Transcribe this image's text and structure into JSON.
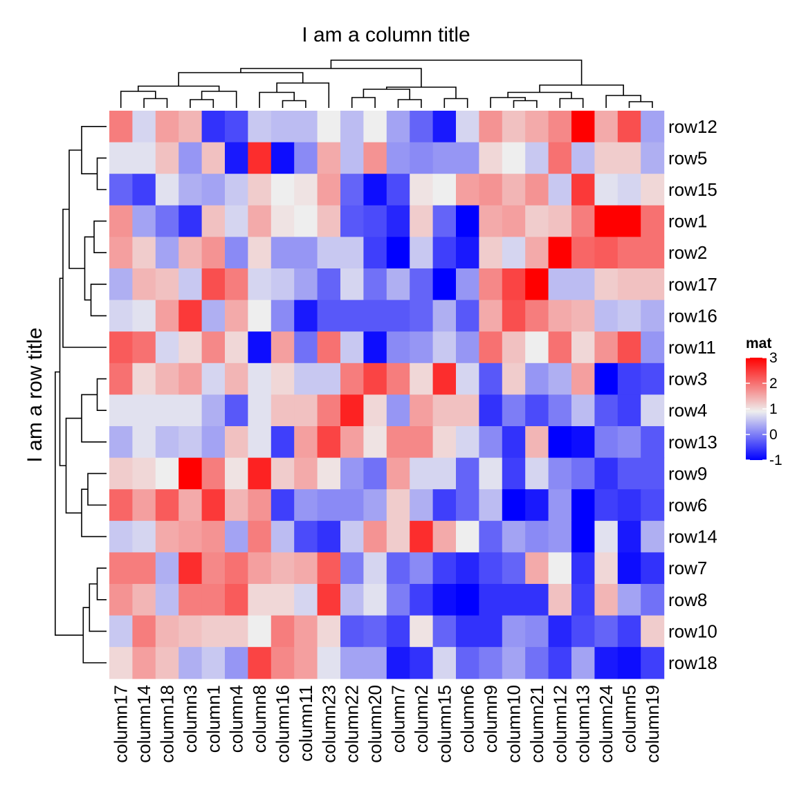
{
  "chart_data": {
    "type": "heatmap",
    "title": "I am a column title",
    "row_title": "I am a row title",
    "columns": [
      "column17",
      "column14",
      "column18",
      "column3",
      "column1",
      "column4",
      "column8",
      "column16",
      "column11",
      "column23",
      "column22",
      "column20",
      "column7",
      "column2",
      "column15",
      "column6",
      "column9",
      "column10",
      "column21",
      "column12",
      "column13",
      "column24",
      "column5",
      "column19"
    ],
    "rows": [
      "row12",
      "row5",
      "row15",
      "row1",
      "row2",
      "row17",
      "row16",
      "row11",
      "row3",
      "row4",
      "row13",
      "row9",
      "row6",
      "row14",
      "row7",
      "row8",
      "row10",
      "row18"
    ],
    "values": [
      [
        1.9,
        0.7,
        1.6,
        1.4,
        -0.6,
        -0.4,
        0.6,
        0.5,
        0.5,
        0.9,
        0.5,
        0.9,
        0.3,
        -0.2,
        -0.8,
        0.7,
        1.7,
        1.3,
        1.5,
        1.8,
        3.0,
        1.5,
        2.3,
        0.3
      ],
      [
        0.8,
        0.8,
        1.3,
        0.2,
        1.3,
        -0.8,
        2.6,
        -0.9,
        0.1,
        1.5,
        0.5,
        1.7,
        0.2,
        0.1,
        0.2,
        0.2,
        1.1,
        0.9,
        0.6,
        2.0,
        0.5,
        1.2,
        1.2,
        0.4
      ],
      [
        -0.2,
        -0.5,
        0.8,
        0.4,
        0.3,
        0.6,
        1.2,
        0.9,
        1.0,
        1.6,
        -0.2,
        -0.9,
        -0.4,
        1.0,
        0.9,
        1.6,
        1.7,
        1.4,
        1.7,
        0.6,
        2.5,
        0.8,
        0.7,
        1.1
      ],
      [
        1.7,
        0.3,
        -0.1,
        -0.6,
        1.3,
        0.7,
        1.5,
        1.0,
        0.9,
        1.3,
        -0.3,
        -0.4,
        -0.7,
        1.2,
        -0.2,
        -1.0,
        1.5,
        1.6,
        1.2,
        1.3,
        1.9,
        3.0,
        3.0,
        2.0
      ],
      [
        1.6,
        1.2,
        0.3,
        1.4,
        1.7,
        0.1,
        1.1,
        0.2,
        0.2,
        0.6,
        0.6,
        -0.5,
        -1.0,
        0.6,
        -0.5,
        -0.8,
        1.2,
        0.7,
        1.5,
        3.0,
        2.1,
        2.2,
        2.0,
        2.0
      ],
      [
        0.4,
        1.4,
        1.3,
        0.6,
        2.3,
        1.9,
        0.7,
        0.6,
        0.3,
        -0.2,
        0.7,
        -0.1,
        0.4,
        -0.2,
        -1.0,
        0.2,
        1.8,
        2.4,
        3.0,
        0.5,
        0.5,
        1.2,
        1.3,
        1.3
      ],
      [
        0.7,
        0.8,
        1.6,
        2.5,
        0.4,
        1.5,
        0.9,
        0.1,
        -0.8,
        -0.3,
        -0.3,
        -0.3,
        -0.3,
        -0.2,
        0.4,
        -0.3,
        1.5,
        2.3,
        1.9,
        1.5,
        1.4,
        0.5,
        0.6,
        0.4
      ],
      [
        2.2,
        2.0,
        0.7,
        1.1,
        1.8,
        1.1,
        -0.9,
        1.6,
        -0.1,
        2.0,
        0.6,
        -0.9,
        0.1,
        0.2,
        0.6,
        0.2,
        2.0,
        1.3,
        0.9,
        2.0,
        1.1,
        1.7,
        2.3,
        0.2
      ],
      [
        2.0,
        1.1,
        1.4,
        1.6,
        0.7,
        1.4,
        0.8,
        1.1,
        0.6,
        0.6,
        1.9,
        2.4,
        1.9,
        1.1,
        2.6,
        0.7,
        -0.3,
        1.2,
        0.2,
        0.4,
        1.6,
        -1.0,
        -0.5,
        -0.4
      ],
      [
        0.8,
        0.8,
        0.8,
        0.8,
        0.4,
        -0.3,
        0.8,
        1.3,
        1.3,
        1.9,
        2.7,
        1.1,
        0.2,
        1.6,
        1.3,
        1.3,
        -0.6,
        0.0,
        -0.4,
        0.0,
        0.5,
        -0.3,
        -0.5,
        0.7
      ],
      [
        0.4,
        0.8,
        0.5,
        0.6,
        0.3,
        1.3,
        0.8,
        -0.5,
        1.6,
        2.4,
        1.6,
        1.0,
        1.8,
        1.8,
        1.1,
        0.7,
        0.1,
        -0.6,
        1.4,
        -1.0,
        -0.9,
        0.0,
        0.1,
        -0.3
      ],
      [
        1.2,
        1.1,
        0.9,
        3.0,
        1.9,
        1.0,
        2.7,
        1.2,
        1.5,
        1.0,
        0.2,
        -0.1,
        1.6,
        0.7,
        0.7,
        -0.2,
        0.8,
        -0.5,
        0.7,
        0.1,
        -0.1,
        -0.6,
        -0.3,
        -0.3
      ],
      [
        2.1,
        1.6,
        2.2,
        1.5,
        2.5,
        1.4,
        1.7,
        -0.5,
        0.2,
        0.1,
        0.1,
        0.3,
        1.2,
        0.4,
        -0.5,
        -0.2,
        0.5,
        -1.0,
        -0.8,
        0.2,
        -1.0,
        -0.5,
        -0.6,
        -0.4
      ],
      [
        0.6,
        0.7,
        1.5,
        1.6,
        1.7,
        0.3,
        1.9,
        0.5,
        -0.4,
        -0.6,
        0.6,
        1.7,
        1.2,
        2.6,
        1.5,
        0.9,
        -0.2,
        0.3,
        0.1,
        0.2,
        -1.0,
        0.8,
        -0.8,
        0.4
      ],
      [
        1.9,
        1.9,
        0.4,
        2.6,
        1.8,
        2.0,
        1.6,
        1.4,
        1.5,
        2.2,
        0.0,
        0.7,
        -0.2,
        0.1,
        -0.5,
        -0.7,
        -0.4,
        -0.2,
        1.5,
        0.9,
        -0.6,
        1.1,
        -0.9,
        -0.6
      ],
      [
        1.7,
        1.4,
        0.5,
        1.9,
        1.9,
        2.2,
        1.1,
        1.1,
        0.7,
        2.5,
        0.5,
        0.8,
        0.0,
        -0.5,
        -0.9,
        -1.0,
        -0.6,
        -0.6,
        -0.6,
        1.3,
        -0.5,
        1.4,
        0.3,
        -0.1
      ],
      [
        0.6,
        1.9,
        1.4,
        1.3,
        1.2,
        1.2,
        0.9,
        1.9,
        1.6,
        1.1,
        -0.3,
        -0.2,
        -0.5,
        1.0,
        -0.2,
        -0.6,
        -0.6,
        0.2,
        0.1,
        -0.7,
        -0.4,
        -0.2,
        -0.5,
        1.2
      ],
      [
        1.1,
        1.6,
        1.3,
        0.4,
        0.6,
        0.2,
        2.4,
        1.8,
        1.6,
        0.8,
        0.3,
        0.3,
        -0.8,
        -0.6,
        0.7,
        -0.2,
        0.0,
        0.3,
        -0.1,
        -0.5,
        0.3,
        -0.8,
        -0.9,
        -0.5
      ]
    ],
    "legend": {
      "title": "mat",
      "ticks": [
        "3",
        "2",
        "1",
        "0",
        "-1"
      ],
      "tick_values": [
        3,
        2,
        1,
        0,
        -1
      ],
      "color_stops": [
        {
          "value": -1,
          "color": "#0000ff"
        },
        {
          "value": 0.9,
          "color": "#eeeeee"
        },
        {
          "value": 3,
          "color": "#ff0000"
        }
      ],
      "placement": "right"
    },
    "row_dendrogram": "left",
    "column_dendrogram": "top"
  }
}
